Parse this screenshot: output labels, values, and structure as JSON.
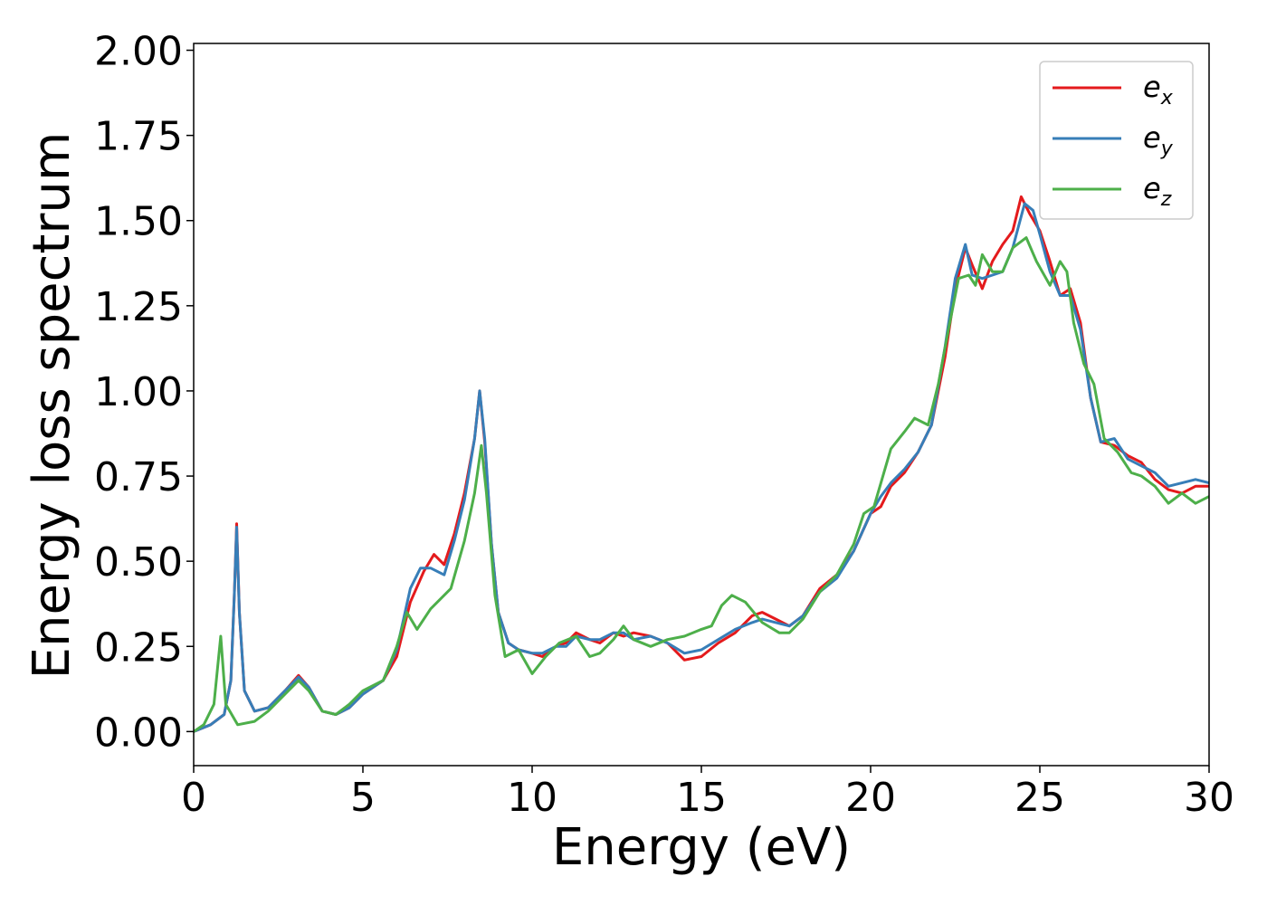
{
  "chart_data": {
    "type": "line",
    "title": "",
    "xlabel": "Energy (eV)",
    "ylabel": "Energy loss spectrum",
    "xlim": [
      0,
      30
    ],
    "ylim": [
      -0.1,
      2.02
    ],
    "xticks": [
      0,
      5,
      10,
      15,
      20,
      25,
      30
    ],
    "xtick_labels": [
      "0",
      "5",
      "10",
      "15",
      "20",
      "25",
      "30"
    ],
    "yticks": [
      0,
      0.25,
      0.5,
      0.75,
      1.0,
      1.25,
      1.5,
      1.75,
      2.0
    ],
    "ytick_labels": [
      "0.00",
      "0.25",
      "0.50",
      "0.75",
      "1.00",
      "1.25",
      "1.50",
      "1.75",
      "2.00"
    ],
    "grid": false,
    "legend_position": "top-right",
    "series": [
      {
        "name": "e_x",
        "legend_base": "e",
        "legend_sub": "x",
        "color": "#e41a1c",
        "points": [
          [
            0,
            0.0
          ],
          [
            0.5,
            0.02
          ],
          [
            0.9,
            0.05
          ],
          [
            1.1,
            0.15
          ],
          [
            1.2,
            0.4
          ],
          [
            1.27,
            0.61
          ],
          [
            1.35,
            0.35
          ],
          [
            1.5,
            0.12
          ],
          [
            1.8,
            0.06
          ],
          [
            2.2,
            0.07
          ],
          [
            2.7,
            0.12
          ],
          [
            3.1,
            0.165
          ],
          [
            3.4,
            0.13
          ],
          [
            3.8,
            0.06
          ],
          [
            4.2,
            0.05
          ],
          [
            4.6,
            0.07
          ],
          [
            5.0,
            0.11
          ],
          [
            5.6,
            0.15
          ],
          [
            6.0,
            0.22
          ],
          [
            6.4,
            0.38
          ],
          [
            6.8,
            0.47
          ],
          [
            7.1,
            0.52
          ],
          [
            7.4,
            0.49
          ],
          [
            7.7,
            0.58
          ],
          [
            8.0,
            0.7
          ],
          [
            8.3,
            0.86
          ],
          [
            8.45,
            1.0
          ],
          [
            8.6,
            0.85
          ],
          [
            8.8,
            0.55
          ],
          [
            9.0,
            0.35
          ],
          [
            9.3,
            0.26
          ],
          [
            9.6,
            0.24
          ],
          [
            10.0,
            0.23
          ],
          [
            10.3,
            0.22
          ],
          [
            10.7,
            0.25
          ],
          [
            11.0,
            0.26
          ],
          [
            11.3,
            0.29
          ],
          [
            11.7,
            0.27
          ],
          [
            12.0,
            0.26
          ],
          [
            12.4,
            0.29
          ],
          [
            12.7,
            0.28
          ],
          [
            13.0,
            0.29
          ],
          [
            13.5,
            0.28
          ],
          [
            14.0,
            0.26
          ],
          [
            14.5,
            0.21
          ],
          [
            15.0,
            0.22
          ],
          [
            15.5,
            0.26
          ],
          [
            16.0,
            0.29
          ],
          [
            16.5,
            0.34
          ],
          [
            16.8,
            0.35
          ],
          [
            17.2,
            0.33
          ],
          [
            17.6,
            0.31
          ],
          [
            18.0,
            0.34
          ],
          [
            18.5,
            0.42
          ],
          [
            19.0,
            0.46
          ],
          [
            19.5,
            0.53
          ],
          [
            20.0,
            0.64
          ],
          [
            20.3,
            0.66
          ],
          [
            20.6,
            0.72
          ],
          [
            21.0,
            0.76
          ],
          [
            21.4,
            0.82
          ],
          [
            21.8,
            0.9
          ],
          [
            22.2,
            1.1
          ],
          [
            22.5,
            1.3
          ],
          [
            22.8,
            1.42
          ],
          [
            23.0,
            1.37
          ],
          [
            23.3,
            1.3
          ],
          [
            23.6,
            1.38
          ],
          [
            23.9,
            1.43
          ],
          [
            24.2,
            1.47
          ],
          [
            24.45,
            1.57
          ],
          [
            24.7,
            1.52
          ],
          [
            25.0,
            1.47
          ],
          [
            25.3,
            1.38
          ],
          [
            25.6,
            1.28
          ],
          [
            25.9,
            1.3
          ],
          [
            26.2,
            1.2
          ],
          [
            26.5,
            0.98
          ],
          [
            26.8,
            0.85
          ],
          [
            27.2,
            0.84
          ],
          [
            27.6,
            0.81
          ],
          [
            28.0,
            0.79
          ],
          [
            28.4,
            0.74
          ],
          [
            28.8,
            0.71
          ],
          [
            29.2,
            0.7
          ],
          [
            29.6,
            0.72
          ],
          [
            30.0,
            0.72
          ]
        ]
      },
      {
        "name": "e_y",
        "legend_base": "e",
        "legend_sub": "y",
        "color": "#377eb8",
        "points": [
          [
            0,
            0.0
          ],
          [
            0.5,
            0.02
          ],
          [
            0.9,
            0.05
          ],
          [
            1.1,
            0.15
          ],
          [
            1.2,
            0.4
          ],
          [
            1.27,
            0.6
          ],
          [
            1.35,
            0.35
          ],
          [
            1.5,
            0.12
          ],
          [
            1.8,
            0.06
          ],
          [
            2.2,
            0.07
          ],
          [
            2.7,
            0.12
          ],
          [
            3.1,
            0.16
          ],
          [
            3.4,
            0.13
          ],
          [
            3.8,
            0.06
          ],
          [
            4.2,
            0.05
          ],
          [
            4.6,
            0.07
          ],
          [
            5.0,
            0.11
          ],
          [
            5.6,
            0.15
          ],
          [
            6.0,
            0.24
          ],
          [
            6.4,
            0.42
          ],
          [
            6.7,
            0.48
          ],
          [
            7.0,
            0.48
          ],
          [
            7.4,
            0.46
          ],
          [
            7.7,
            0.56
          ],
          [
            8.0,
            0.68
          ],
          [
            8.3,
            0.86
          ],
          [
            8.45,
            1.0
          ],
          [
            8.6,
            0.86
          ],
          [
            8.8,
            0.55
          ],
          [
            9.0,
            0.35
          ],
          [
            9.3,
            0.26
          ],
          [
            9.6,
            0.24
          ],
          [
            10.0,
            0.23
          ],
          [
            10.3,
            0.23
          ],
          [
            10.7,
            0.25
          ],
          [
            11.0,
            0.25
          ],
          [
            11.3,
            0.28
          ],
          [
            11.7,
            0.27
          ],
          [
            12.0,
            0.27
          ],
          [
            12.4,
            0.29
          ],
          [
            12.7,
            0.29
          ],
          [
            13.0,
            0.27
          ],
          [
            13.5,
            0.28
          ],
          [
            14.0,
            0.26
          ],
          [
            14.5,
            0.23
          ],
          [
            15.0,
            0.24
          ],
          [
            15.5,
            0.27
          ],
          [
            16.0,
            0.3
          ],
          [
            16.5,
            0.32
          ],
          [
            16.8,
            0.33
          ],
          [
            17.2,
            0.32
          ],
          [
            17.6,
            0.31
          ],
          [
            18.0,
            0.34
          ],
          [
            18.5,
            0.41
          ],
          [
            19.0,
            0.45
          ],
          [
            19.5,
            0.53
          ],
          [
            20.0,
            0.64
          ],
          [
            20.3,
            0.69
          ],
          [
            20.6,
            0.73
          ],
          [
            21.0,
            0.77
          ],
          [
            21.4,
            0.82
          ],
          [
            21.8,
            0.9
          ],
          [
            22.2,
            1.13
          ],
          [
            22.5,
            1.33
          ],
          [
            22.8,
            1.43
          ],
          [
            23.0,
            1.34
          ],
          [
            23.3,
            1.33
          ],
          [
            23.6,
            1.34
          ],
          [
            23.9,
            1.35
          ],
          [
            24.2,
            1.42
          ],
          [
            24.55,
            1.55
          ],
          [
            24.8,
            1.53
          ],
          [
            25.0,
            1.46
          ],
          [
            25.3,
            1.35
          ],
          [
            25.6,
            1.28
          ],
          [
            25.9,
            1.28
          ],
          [
            26.2,
            1.18
          ],
          [
            26.5,
            0.98
          ],
          [
            26.8,
            0.85
          ],
          [
            27.2,
            0.86
          ],
          [
            27.6,
            0.8
          ],
          [
            28.0,
            0.78
          ],
          [
            28.4,
            0.76
          ],
          [
            28.8,
            0.72
          ],
          [
            29.2,
            0.73
          ],
          [
            29.6,
            0.74
          ],
          [
            30.0,
            0.73
          ]
        ]
      },
      {
        "name": "e_z",
        "legend_base": "e",
        "legend_sub": "z",
        "color": "#4daf4a",
        "points": [
          [
            0,
            0.0
          ],
          [
            0.3,
            0.02
          ],
          [
            0.6,
            0.08
          ],
          [
            0.8,
            0.28
          ],
          [
            0.95,
            0.08
          ],
          [
            1.3,
            0.02
          ],
          [
            1.8,
            0.03
          ],
          [
            2.2,
            0.06
          ],
          [
            2.7,
            0.11
          ],
          [
            3.1,
            0.15
          ],
          [
            3.4,
            0.12
          ],
          [
            3.8,
            0.06
          ],
          [
            4.2,
            0.05
          ],
          [
            4.6,
            0.08
          ],
          [
            5.0,
            0.12
          ],
          [
            5.6,
            0.15
          ],
          [
            6.0,
            0.25
          ],
          [
            6.3,
            0.35
          ],
          [
            6.6,
            0.3
          ],
          [
            7.0,
            0.36
          ],
          [
            7.3,
            0.39
          ],
          [
            7.6,
            0.42
          ],
          [
            8.0,
            0.56
          ],
          [
            8.3,
            0.7
          ],
          [
            8.5,
            0.84
          ],
          [
            8.65,
            0.7
          ],
          [
            8.9,
            0.4
          ],
          [
            9.2,
            0.22
          ],
          [
            9.6,
            0.24
          ],
          [
            10.0,
            0.17
          ],
          [
            10.4,
            0.22
          ],
          [
            10.8,
            0.26
          ],
          [
            11.3,
            0.28
          ],
          [
            11.7,
            0.22
          ],
          [
            12.0,
            0.23
          ],
          [
            12.4,
            0.27
          ],
          [
            12.7,
            0.31
          ],
          [
            13.0,
            0.27
          ],
          [
            13.5,
            0.25
          ],
          [
            14.0,
            0.27
          ],
          [
            14.5,
            0.28
          ],
          [
            15.0,
            0.3
          ],
          [
            15.3,
            0.31
          ],
          [
            15.6,
            0.37
          ],
          [
            15.9,
            0.4
          ],
          [
            16.3,
            0.38
          ],
          [
            16.8,
            0.32
          ],
          [
            17.3,
            0.29
          ],
          [
            17.6,
            0.29
          ],
          [
            18.0,
            0.33
          ],
          [
            18.5,
            0.41
          ],
          [
            19.0,
            0.46
          ],
          [
            19.5,
            0.55
          ],
          [
            19.8,
            0.64
          ],
          [
            20.1,
            0.66
          ],
          [
            20.6,
            0.83
          ],
          [
            21.0,
            0.88
          ],
          [
            21.3,
            0.92
          ],
          [
            21.7,
            0.9
          ],
          [
            22.0,
            1.02
          ],
          [
            22.3,
            1.18
          ],
          [
            22.6,
            1.33
          ],
          [
            22.9,
            1.34
          ],
          [
            23.1,
            1.31
          ],
          [
            23.3,
            1.4
          ],
          [
            23.6,
            1.35
          ],
          [
            23.9,
            1.35
          ],
          [
            24.2,
            1.42
          ],
          [
            24.6,
            1.45
          ],
          [
            24.9,
            1.38
          ],
          [
            25.3,
            1.31
          ],
          [
            25.6,
            1.38
          ],
          [
            25.8,
            1.35
          ],
          [
            26.0,
            1.2
          ],
          [
            26.3,
            1.08
          ],
          [
            26.6,
            1.02
          ],
          [
            26.9,
            0.86
          ],
          [
            27.3,
            0.82
          ],
          [
            27.7,
            0.76
          ],
          [
            28.0,
            0.75
          ],
          [
            28.4,
            0.72
          ],
          [
            28.8,
            0.67
          ],
          [
            29.2,
            0.7
          ],
          [
            29.6,
            0.67
          ],
          [
            30.0,
            0.69
          ]
        ]
      }
    ]
  }
}
